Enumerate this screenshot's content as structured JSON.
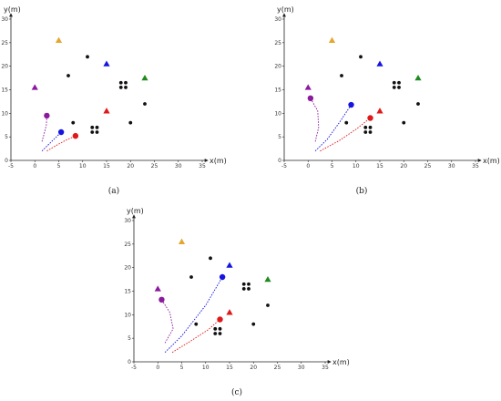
{
  "figure": {
    "captions": [
      "(a)",
      "(b)",
      "(c)"
    ]
  },
  "colors": {
    "purple": "#8b1a9e",
    "blue": "#1515e0",
    "red": "#e0181a",
    "orange": "#e3a72f",
    "green": "#1f8a1f",
    "black": "#111111"
  },
  "chart_data": [
    {
      "type": "scatter",
      "panel": "(a)",
      "xlabel": "x(m)",
      "ylabel": "y(m)",
      "xlim": [
        -5,
        35
      ],
      "ylim": [
        0,
        30
      ],
      "xticks": [
        -5,
        0,
        5,
        10,
        15,
        20,
        25,
        30,
        35
      ],
      "yticks": [
        0,
        5,
        10,
        15,
        20,
        25,
        30
      ],
      "grid": false,
      "targets": [
        {
          "x": 0,
          "y": 15.5,
          "color": "purple"
        },
        {
          "x": 5,
          "y": 25.5,
          "color": "orange"
        },
        {
          "x": 15,
          "y": 20.5,
          "color": "blue"
        },
        {
          "x": 15,
          "y": 10.5,
          "color": "red"
        },
        {
          "x": 23,
          "y": 17.5,
          "color": "green"
        }
      ],
      "obstacles": [
        [
          7,
          18
        ],
        [
          11,
          22
        ],
        [
          8,
          8
        ],
        [
          20,
          8
        ],
        [
          23,
          12
        ],
        [
          12,
          7
        ],
        [
          13,
          7
        ],
        [
          12,
          6
        ],
        [
          13,
          6
        ],
        [
          18,
          16.5
        ],
        [
          19,
          16.5
        ],
        [
          18,
          15.5
        ],
        [
          19,
          15.5
        ]
      ],
      "agents": [
        {
          "color": "purple",
          "x": 2.5,
          "y": 9.5,
          "path": [
            [
              1.5,
              4
            ],
            [
              1.9,
              5.5
            ],
            [
              2.4,
              7.5
            ],
            [
              2.5,
              9.5
            ]
          ]
        },
        {
          "color": "blue",
          "x": 5.5,
          "y": 6,
          "path": [
            [
              1.5,
              2
            ],
            [
              3,
              3.5
            ],
            [
              4.5,
              5
            ],
            [
              5.5,
              6
            ]
          ]
        },
        {
          "color": "red",
          "x": 8.5,
          "y": 5.2,
          "path": [
            [
              2.5,
              2
            ],
            [
              4.5,
              3.2
            ],
            [
              6.5,
              4.3
            ],
            [
              8.5,
              5.2
            ]
          ]
        }
      ]
    },
    {
      "type": "scatter",
      "panel": "(b)",
      "xlabel": "x(m)",
      "ylabel": "y(m)",
      "xlim": [
        -5,
        35
      ],
      "ylim": [
        0,
        30
      ],
      "xticks": [
        -5,
        0,
        5,
        10,
        15,
        20,
        25,
        30,
        35
      ],
      "yticks": [
        0,
        5,
        10,
        15,
        20,
        25,
        30
      ],
      "grid": false,
      "targets": [
        {
          "x": 0,
          "y": 15.5,
          "color": "purple"
        },
        {
          "x": 5,
          "y": 25.5,
          "color": "orange"
        },
        {
          "x": 15,
          "y": 20.5,
          "color": "blue"
        },
        {
          "x": 15,
          "y": 10.5,
          "color": "red"
        },
        {
          "x": 23,
          "y": 17.5,
          "color": "green"
        }
      ],
      "obstacles": [
        [
          7,
          18
        ],
        [
          11,
          22
        ],
        [
          8,
          8
        ],
        [
          20,
          8
        ],
        [
          23,
          12
        ],
        [
          12,
          7
        ],
        [
          13,
          7
        ],
        [
          12,
          6
        ],
        [
          13,
          6
        ],
        [
          18,
          16.5
        ],
        [
          19,
          16.5
        ],
        [
          18,
          15.5
        ],
        [
          19,
          15.5
        ]
      ],
      "agents": [
        {
          "color": "purple",
          "x": 0.5,
          "y": 13.2,
          "path": [
            [
              1.5,
              4
            ],
            [
              2.2,
              7
            ],
            [
              2,
              10.5
            ],
            [
              0.5,
              13.2
            ]
          ]
        },
        {
          "color": "blue",
          "x": 9,
          "y": 11.8,
          "path": [
            [
              1.5,
              2
            ],
            [
              4,
              4.5
            ],
            [
              6.5,
              8
            ],
            [
              9,
              11.8
            ]
          ]
        },
        {
          "color": "red",
          "x": 13,
          "y": 9,
          "path": [
            [
              2.5,
              2
            ],
            [
              6.5,
              4.2
            ],
            [
              10,
              6.6
            ],
            [
              13,
              9
            ]
          ]
        }
      ]
    },
    {
      "type": "scatter",
      "panel": "(c)",
      "xlabel": "x(m)",
      "ylabel": "y(m)",
      "xlim": [
        -5,
        35
      ],
      "ylim": [
        0,
        30
      ],
      "xticks": [
        -5,
        0,
        5,
        10,
        15,
        20,
        25,
        30,
        35
      ],
      "yticks": [
        0,
        5,
        10,
        15,
        20,
        25,
        30
      ],
      "grid": false,
      "targets": [
        {
          "x": 0,
          "y": 15.5,
          "color": "purple"
        },
        {
          "x": 5,
          "y": 25.5,
          "color": "orange"
        },
        {
          "x": 15,
          "y": 20.5,
          "color": "blue"
        },
        {
          "x": 15,
          "y": 10.5,
          "color": "red"
        },
        {
          "x": 23,
          "y": 17.5,
          "color": "green"
        }
      ],
      "obstacles": [
        [
          7,
          18
        ],
        [
          11,
          22
        ],
        [
          8,
          8
        ],
        [
          20,
          8
        ],
        [
          23,
          12
        ],
        [
          12,
          7
        ],
        [
          13,
          7
        ],
        [
          12,
          6
        ],
        [
          13,
          6
        ],
        [
          18,
          16.5
        ],
        [
          19,
          16.5
        ],
        [
          18,
          15.5
        ],
        [
          19,
          15.5
        ]
      ],
      "agents": [
        {
          "color": "purple",
          "x": 0.8,
          "y": 13.2,
          "path": [
            [
              1.5,
              4
            ],
            [
              3.2,
              7
            ],
            [
              2.5,
              10.5
            ],
            [
              0.8,
              13.2
            ]
          ]
        },
        {
          "color": "blue",
          "x": 13.5,
          "y": 18,
          "path": [
            [
              1.5,
              2
            ],
            [
              5,
              5.5
            ],
            [
              10,
              12
            ],
            [
              13.5,
              18
            ]
          ]
        },
        {
          "color": "red",
          "x": 13,
          "y": 9,
          "path": [
            [
              3,
              2
            ],
            [
              7,
              4.5
            ],
            [
              10.5,
              6.8
            ],
            [
              13,
              9
            ]
          ]
        }
      ]
    }
  ]
}
